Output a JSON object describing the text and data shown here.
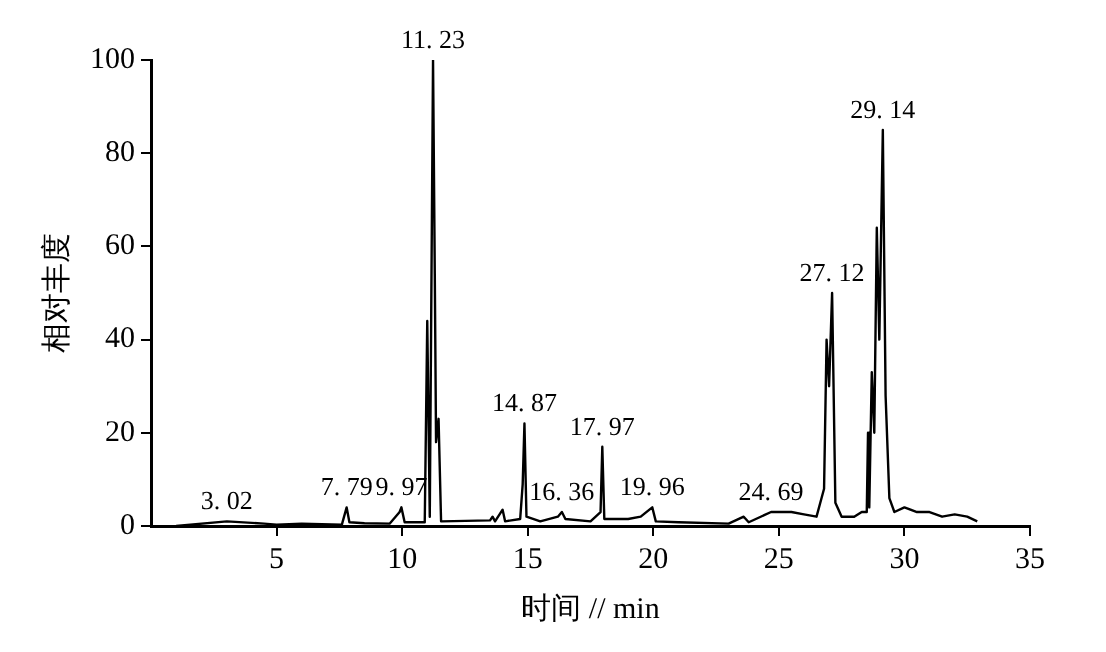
{
  "chart_data": {
    "type": "line",
    "xlabel": "时间 // min",
    "ylabel": "相对丰度",
    "xlim": [
      0,
      35
    ],
    "xticks": [
      5,
      10,
      15,
      20,
      25,
      30,
      35
    ],
    "ylim": [
      0,
      100
    ],
    "yticks": [
      0,
      20,
      40,
      60,
      80,
      100
    ],
    "grid": false,
    "legend": false,
    "marker": "none",
    "line_style": "solid",
    "series": [
      {
        "color": "#000000",
        "x": [
          1,
          3.02,
          4.5,
          5,
          6,
          7.6,
          7.79,
          7.9,
          8.5,
          9.5,
          9.9,
          9.97,
          10.1,
          10.9,
          11.0,
          11.1,
          11.23,
          11.3,
          11.35,
          11.45,
          11.55,
          13.5,
          13.6,
          13.7,
          14.0,
          14.1,
          14.7,
          14.8,
          14.87,
          14.95,
          15.5,
          16.2,
          16.36,
          16.5,
          17.5,
          17.9,
          17.97,
          18.05,
          19,
          19.5,
          19.96,
          20.1,
          21,
          23,
          23.6,
          23.8,
          24.69,
          25,
          25.5,
          26,
          26.5,
          26.8,
          26.9,
          27.0,
          27.12,
          27.25,
          27.5,
          28,
          28.3,
          28.5,
          28.55,
          28.6,
          28.7,
          28.8,
          28.9,
          29.0,
          29.14,
          29.25,
          29.4,
          29.6,
          30,
          30.5,
          31,
          31.5,
          32,
          32.5,
          32.9
        ],
        "values": [
          0,
          1,
          0.5,
          0.3,
          0.5,
          0.3,
          4,
          0.8,
          0.6,
          0.5,
          3,
          4,
          0.8,
          0.8,
          44,
          2,
          100,
          54,
          18,
          23,
          1,
          1.2,
          2,
          1,
          3.5,
          1,
          1.5,
          9,
          22,
          2,
          1,
          2,
          3,
          1.5,
          1,
          3,
          17,
          1.5,
          1.5,
          2,
          4,
          1,
          0.8,
          0.5,
          2,
          0.8,
          3,
          3,
          3,
          2.5,
          2,
          8,
          40,
          30,
          50,
          5,
          2,
          2,
          3,
          3,
          20,
          4,
          33,
          20,
          64,
          40,
          85,
          28,
          6,
          3,
          4,
          3,
          3,
          2,
          2.5,
          2,
          1
        ]
      }
    ],
    "annotations": [
      {
        "text": "3. 02",
        "x": 3.02,
        "y": 1
      },
      {
        "text": "7. 79",
        "x": 7.79,
        "y": 4
      },
      {
        "text": "9. 97",
        "x": 9.97,
        "y": 4
      },
      {
        "text": "11. 23",
        "x": 11.23,
        "y": 100
      },
      {
        "text": "14. 87",
        "x": 14.87,
        "y": 22
      },
      {
        "text": "16. 36",
        "x": 16.36,
        "y": 3
      },
      {
        "text": "17. 97",
        "x": 17.97,
        "y": 17
      },
      {
        "text": "19. 96",
        "x": 19.96,
        "y": 4
      },
      {
        "text": "24. 69",
        "x": 24.69,
        "y": 3
      },
      {
        "text": "27. 12",
        "x": 27.12,
        "y": 50
      },
      {
        "text": "29. 14",
        "x": 29.14,
        "y": 85
      }
    ]
  }
}
